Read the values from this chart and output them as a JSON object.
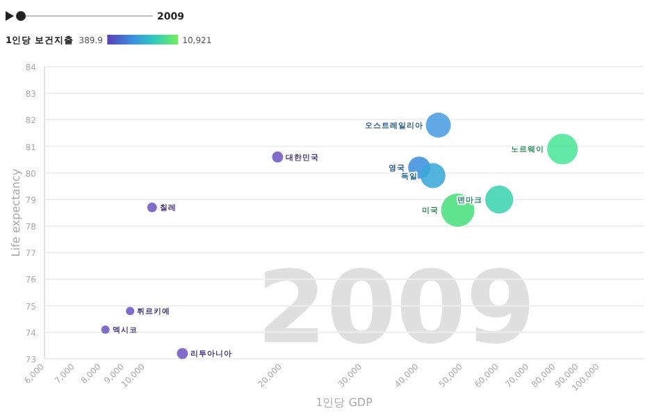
{
  "chart_data": {
    "type": "bubble",
    "xlabel": "1인당 GDP",
    "ylabel": "Life expectancy",
    "clabel": "1인당 보건지출",
    "annotations": [
      "2009",
      "2009",
      "389.9",
      "10,921"
    ],
    "log": "x",
    "grid": "y",
    "xlim": [
      6000,
      125000
    ],
    "ylim": [
      73,
      84
    ],
    "yticks": [
      73,
      74,
      75,
      76,
      77,
      78,
      79,
      80,
      81,
      82,
      83,
      84
    ],
    "xticks": [
      {
        "value": 6000,
        "label": "6,000"
      },
      {
        "value": 7000,
        "label": "7,000"
      },
      {
        "value": 8000,
        "label": "8,000"
      },
      {
        "value": 9000,
        "label": "9,000"
      },
      {
        "value": 10000,
        "label": "10,000"
      },
      {
        "value": 20000,
        "label": "20,000"
      },
      {
        "value": 30000,
        "label": "30,000"
      },
      {
        "value": 40000,
        "label": "40,000"
      },
      {
        "value": 50000,
        "label": "50,000"
      },
      {
        "value": 60000,
        "label": "60,000"
      },
      {
        "value": 70000,
        "label": "70,000"
      },
      {
        "value": 80000,
        "label": "80,000"
      },
      {
        "value": 90000,
        "label": "90,000"
      },
      {
        "value": 100000,
        "label": "100,000"
      }
    ],
    "series": [
      {
        "name": "대한민국",
        "color": "#7158c4",
        "x": [
          19550
        ],
        "values": [
          80.6
        ],
        "sizes": [
          0.11
        ]
      },
      {
        "name": "칠레",
        "color": "#7158c4",
        "x": [
          10350
        ],
        "values": [
          78.7
        ],
        "sizes": [
          0.085
        ]
      },
      {
        "name": "튀르키예",
        "color": "#7158c4",
        "x": [
          9260
        ],
        "values": [
          74.8
        ],
        "sizes": [
          0.063
        ]
      },
      {
        "name": "멕시코",
        "color": "#7158c4",
        "x": [
          8170
        ],
        "values": [
          74.1
        ],
        "sizes": [
          0.063
        ]
      },
      {
        "name": "리투아니아",
        "color": "#7158c4",
        "x": [
          12070
        ],
        "values": [
          73.2
        ],
        "sizes": [
          0.11
        ]
      },
      {
        "name": "오스트레일리아",
        "color": "#4a9de0",
        "x": [
          44150
        ],
        "values": [
          81.8
        ],
        "sizes": [
          0.56
        ]
      },
      {
        "name": "노르웨이",
        "color": "#4de69a",
        "x": [
          82800
        ],
        "values": [
          80.9
        ],
        "sizes": [
          0.84
        ]
      },
      {
        "name": "영국",
        "color": "#3f8fe0",
        "x": [
          40080
        ],
        "values": [
          80.2
        ],
        "sizes": [
          0.44
        ]
      },
      {
        "name": "독일",
        "color": "#3aa8d8",
        "x": [
          42960
        ],
        "values": [
          79.9
        ],
        "sizes": [
          0.56
        ]
      },
      {
        "name": "미국",
        "color": "#4ae07e",
        "x": [
          48720
        ],
        "values": [
          78.6
        ],
        "sizes": [
          1
        ]
      },
      {
        "name": "덴마크",
        "color": "#3cd4b2",
        "x": [
          60100
        ],
        "values": [
          79.0
        ],
        "sizes": [
          0.7
        ]
      }
    ]
  }
}
